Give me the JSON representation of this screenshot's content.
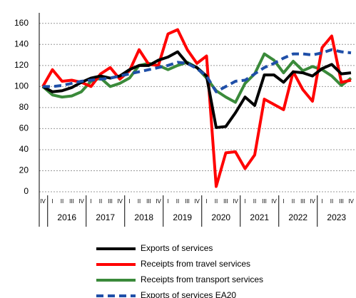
{
  "chart_data": {
    "type": "line",
    "categories": [
      "IV",
      "I",
      "II",
      "III",
      "IV",
      "I",
      "II",
      "III",
      "IV",
      "I",
      "II",
      "III",
      "IV",
      "I",
      "II",
      "III",
      "IV",
      "I",
      "II",
      "III",
      "IV",
      "I",
      "II",
      "III",
      "IV",
      "I",
      "II",
      "III",
      "IV",
      "I",
      "II",
      "III",
      "IV"
    ],
    "years": [
      "2016",
      "2017",
      "2018",
      "2019",
      "2020",
      "2021",
      "2022",
      "2023"
    ],
    "ylim": [
      0,
      170
    ],
    "yticks": [
      0,
      20,
      40,
      60,
      80,
      100,
      120,
      140,
      160
    ],
    "grid": true,
    "series": [
      {
        "name": "Exports of services",
        "color": "#000000",
        "dash": false,
        "values": [
          100,
          95,
          96,
          99,
          104,
          108,
          110,
          108,
          110,
          116,
          120,
          120,
          125,
          128,
          133,
          122,
          118,
          110,
          61,
          62,
          75,
          90,
          82,
          111,
          111,
          104,
          114,
          113,
          110,
          117,
          121,
          112,
          113
        ]
      },
      {
        "name": "Receipts from travel services",
        "color": "#ff0000",
        "dash": false,
        "values": [
          100,
          116,
          105,
          106,
          104,
          100,
          112,
          118,
          107,
          115,
          135,
          121,
          120,
          150,
          154,
          135,
          122,
          129,
          5,
          37,
          38,
          22,
          35,
          88,
          83,
          78,
          114,
          97,
          86,
          137,
          148,
          104,
          106
        ]
      },
      {
        "name": "Receipts from transport services",
        "color": "#3a8a3a",
        "dash": false,
        "values": [
          100,
          92,
          90,
          91,
          95,
          105,
          108,
          100,
          103,
          108,
          120,
          122,
          120,
          116,
          120,
          123,
          118,
          108,
          96,
          90,
          85,
          103,
          112,
          131,
          125,
          113,
          124,
          115,
          119,
          116,
          110,
          101,
          108
        ]
      },
      {
        "name": "Exports of services EA20",
        "color": "#1f4fa8",
        "dash": true,
        "values": [
          100,
          100,
          101,
          103,
          105,
          106,
          107,
          108,
          110,
          112,
          114,
          116,
          118,
          120,
          123,
          122,
          117,
          110,
          95,
          100,
          105,
          106,
          112,
          118,
          122,
          127,
          131,
          131,
          130,
          132,
          135,
          133,
          132
        ]
      }
    ]
  }
}
